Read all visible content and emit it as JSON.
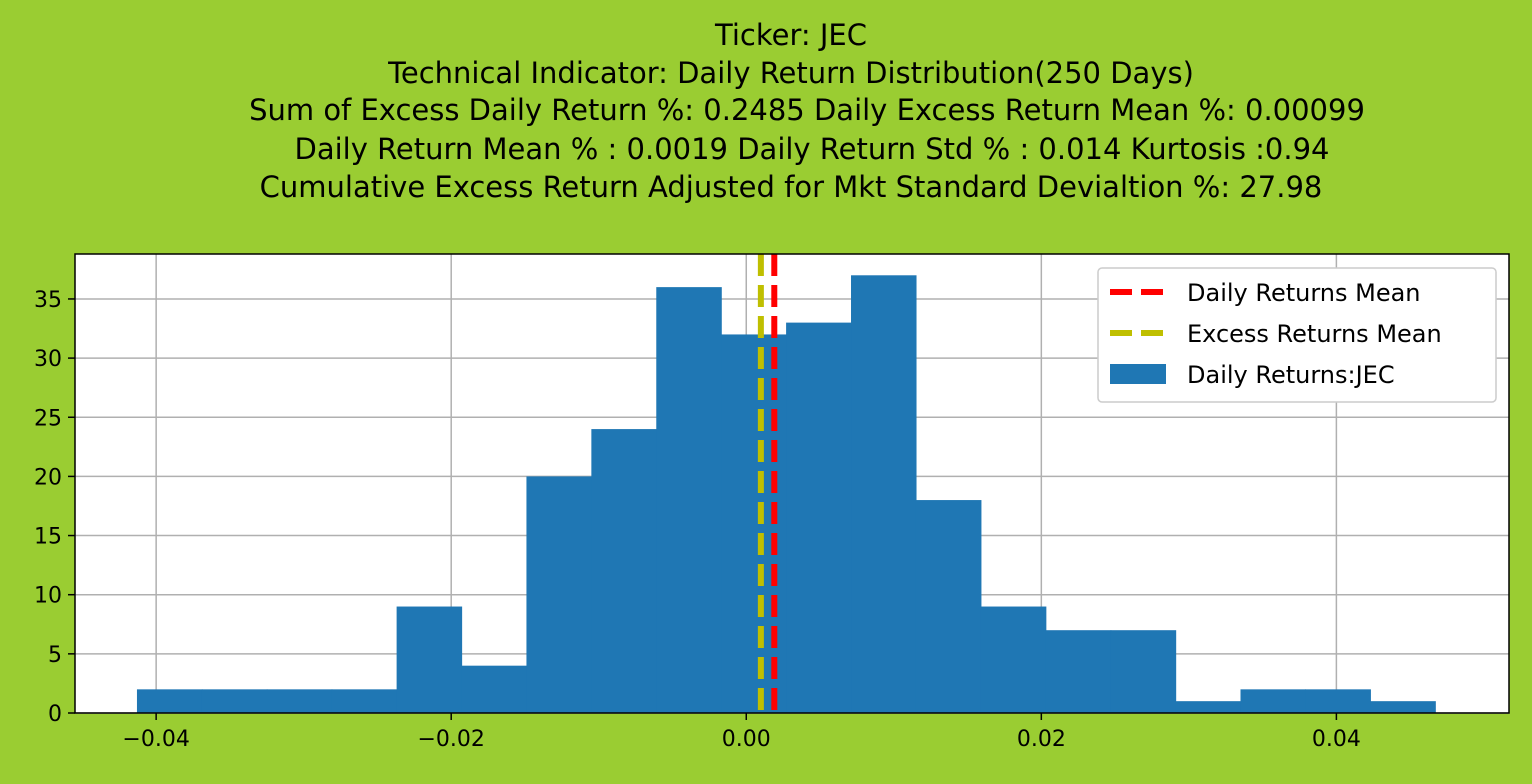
{
  "chart_data": {
    "type": "bar",
    "title_lines": [
      "Ticker: JEC",
      "Technical Indicator: Daily Return Distribution(250 Days)",
      "Sum of Excess Daily Return %: 0.2485   Daily Excess Return Mean %: 0.00099",
      "Daily Return Mean % : 0.0019    Daily Return Std % : 0.014  Kurtosis :0.94",
      "Cumulative Excess Return Adjusted for Mkt Standard Devialtion %: 27.98"
    ],
    "xlabel": "",
    "ylabel": "",
    "xlim": [
      -0.0455,
      0.0517
    ],
    "ylim": [
      0,
      38.8
    ],
    "grid": true,
    "legend_position": "top-right",
    "bin_edges": [
      -0.0413,
      -0.0369,
      -0.0325,
      -0.0281,
      -0.0237,
      -0.0193,
      -0.0149,
      -0.0105,
      -0.0061,
      -0.0017,
      0.0027,
      0.0071,
      0.0115,
      0.0159,
      0.0203,
      0.0247,
      0.0291,
      0.0335,
      0.0379,
      0.0423,
      0.0467
    ],
    "series": [
      {
        "name": "Daily Returns:JEC",
        "color": "#1f77b4",
        "values": [
          2,
          2,
          2,
          2,
          9,
          4,
          20,
          24,
          36,
          32,
          33,
          37,
          18,
          9,
          7,
          7,
          1,
          2,
          2,
          1
        ]
      }
    ],
    "vlines": [
      {
        "name": "Daily Returns Mean",
        "x": 0.0019,
        "color": "#ff0000"
      },
      {
        "name": "Excess Returns Mean",
        "x": 0.00099,
        "color": "#bfbf00"
      }
    ],
    "x_ticks": [
      {
        "value": -0.04,
        "label": "−0.04"
      },
      {
        "value": -0.02,
        "label": "−0.02"
      },
      {
        "value": 0.0,
        "label": "0.00"
      },
      {
        "value": 0.02,
        "label": "0.02"
      },
      {
        "value": 0.04,
        "label": "0.04"
      }
    ],
    "y_ticks": [
      {
        "value": 0,
        "label": "0"
      },
      {
        "value": 5,
        "label": "5"
      },
      {
        "value": 10,
        "label": "10"
      },
      {
        "value": 15,
        "label": "15"
      },
      {
        "value": 20,
        "label": "20"
      },
      {
        "value": 25,
        "label": "25"
      },
      {
        "value": 30,
        "label": "30"
      },
      {
        "value": 35,
        "label": "35"
      }
    ],
    "legend": [
      {
        "label": "Daily Returns Mean",
        "kind": "dashed-line",
        "color": "#ff0000"
      },
      {
        "label": "Excess Returns Mean",
        "kind": "dashed-line",
        "color": "#bfbf00"
      },
      {
        "label": "Daily Returns:JEC",
        "kind": "patch",
        "color": "#1f77b4"
      }
    ]
  }
}
